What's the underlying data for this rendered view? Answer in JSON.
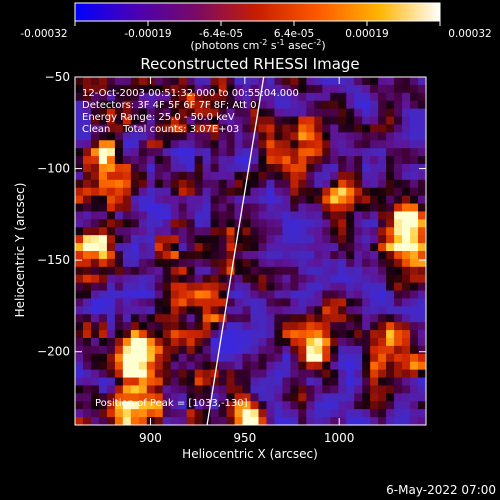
{
  "colorbar": {
    "ticks": [
      "-0.00032",
      "-0.00019",
      "-6.4e-05",
      "6.4e-05",
      "0.00019",
      "0.00032"
    ],
    "units_main": "(photons cm",
    "units_sup1": "-2",
    "units_mid1": " s",
    "units_sup2": "-1",
    "units_mid2": " asec",
    "units_sup3": "-2",
    "units_end": ")",
    "colors": [
      "#0000ff",
      "#4b00b4",
      "#7a0a64",
      "#c81e00",
      "#ff5a00",
      "#ffb400",
      "#ffffff"
    ]
  },
  "chart_data": {
    "type": "heatmap",
    "title": "Reconstructed RHESSI Image",
    "xlabel": "Heliocentric X (arcsec)",
    "ylabel": "Heliocentric Y (arcsec)",
    "xlim": [
      860,
      1046
    ],
    "ylim": [
      -240,
      -50
    ],
    "x_ticks": [
      900,
      950,
      1000
    ],
    "y_ticks": [
      -50,
      -100,
      -150,
      -200
    ],
    "value_range": [
      -0.00032,
      0.00032
    ],
    "limb_line": [
      [
        930,
        -240
      ],
      [
        944,
        -150
      ],
      [
        960,
        -50
      ]
    ],
    "annotations": [
      "12-Oct-2003 00:51:32.000 to 00:55:04.000",
      "Detectors: 3F 4F 5F 6F 7F 8F; Att 0",
      "Energy Range: 25.0 - 50.0 keV",
      "Clean    Total counts: 3.07E+03"
    ],
    "peak_label": "Position of Peak = [1033,-130]",
    "hot_spots": [
      {
        "x": 893,
        "y": -203,
        "level": 1.0
      },
      {
        "x": 868,
        "y": -143,
        "level": 0.85
      },
      {
        "x": 1035,
        "y": -128,
        "level": 1.0
      },
      {
        "x": 1040,
        "y": -150,
        "level": 0.7
      },
      {
        "x": 978,
        "y": -85,
        "level": 0.8
      },
      {
        "x": 878,
        "y": -97,
        "level": 0.75
      },
      {
        "x": 985,
        "y": -195,
        "level": 0.75
      },
      {
        "x": 888,
        "y": -232,
        "level": 0.65
      },
      {
        "x": 1030,
        "y": -203,
        "level": 0.8
      },
      {
        "x": 950,
        "y": -232,
        "level": 0.55
      },
      {
        "x": 920,
        "y": -170,
        "level": 0.5
      },
      {
        "x": 1005,
        "y": -120,
        "level": 0.5
      },
      {
        "x": 930,
        "y": -60,
        "level": 0.45
      }
    ]
  },
  "footer_date": "6-May-2022 07:00"
}
